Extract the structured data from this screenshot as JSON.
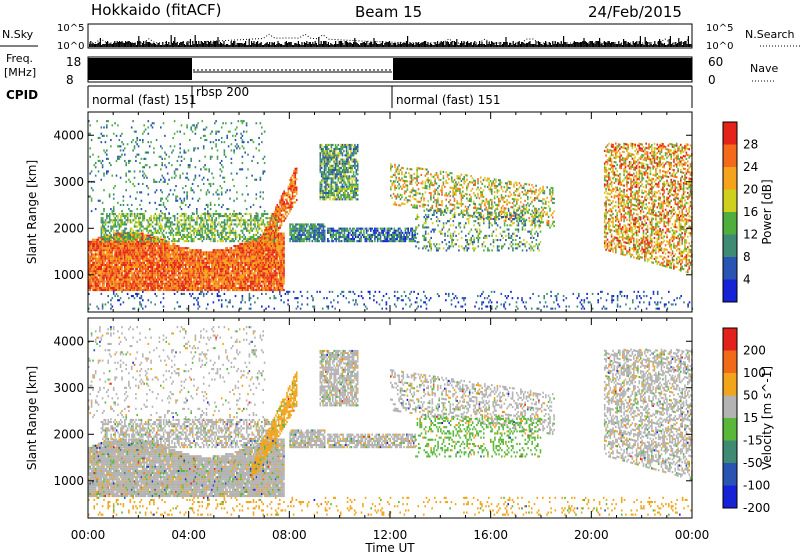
{
  "header": {
    "station": "Hokkaido (fitACF)",
    "beam": "Beam 15",
    "date": "24/Feb/2015"
  },
  "noise_panel": {
    "left_label": "N.Sky",
    "right_label": "N.Search",
    "ticks_left": [
      "10^5",
      "10^0"
    ],
    "ticks_right": [
      "10^5",
      "10^0"
    ]
  },
  "freq_panel": {
    "left_label_1": "Freq.",
    "left_label_2": "[MHz]",
    "right_label": "Nave",
    "ticks_left": [
      "18",
      "8"
    ],
    "ticks_right": [
      "60",
      "0"
    ]
  },
  "cpid_panel": {
    "label": "CPID",
    "modes": [
      {
        "start": 0,
        "end": 4,
        "text": "normal (fast) 151"
      },
      {
        "start": 4,
        "end": 12,
        "text": "rbsp 200"
      },
      {
        "start": 12,
        "end": 24,
        "text": "normal (fast) 151"
      }
    ]
  },
  "x_axis": {
    "label": "Time UT",
    "ticks": [
      "00:00",
      "04:00",
      "08:00",
      "12:00",
      "16:00",
      "20:00",
      "00:00"
    ]
  },
  "chart_data": [
    {
      "type": "heatmap",
      "ylabel": "Slant Range [km]",
      "ylim": [
        200,
        4500
      ],
      "yticks": [
        "1000",
        "2000",
        "3000",
        "4000"
      ],
      "xlim": [
        0,
        24
      ],
      "colorbar": {
        "label": "Power [dB]",
        "ticks": [
          "4",
          "8",
          "12",
          "16",
          "20",
          "24",
          "28"
        ],
        "colors": [
          "#1522d6",
          "#2a54b3",
          "#3e8a73",
          "#4fae3c",
          "#cfcf1e",
          "#f5a31c",
          "#f46a1a",
          "#e4231a"
        ]
      }
    },
    {
      "type": "heatmap",
      "ylabel": "Slant Range [km]",
      "ylim": [
        200,
        4500
      ],
      "yticks": [
        "1000",
        "2000",
        "3000",
        "4000"
      ],
      "xlim": [
        0,
        24
      ],
      "colorbar": {
        "label": "Velocity [m s^-1]",
        "ticks": [
          "200",
          "100",
          "50",
          "15",
          "-15",
          "-50",
          "-100",
          "-200"
        ],
        "colors": [
          "#1522d6",
          "#2a54b3",
          "#3e8a73",
          "#59b83a",
          "#b3b3b3",
          "#f2a51a",
          "#f06a18",
          "#e2221a"
        ]
      }
    }
  ]
}
